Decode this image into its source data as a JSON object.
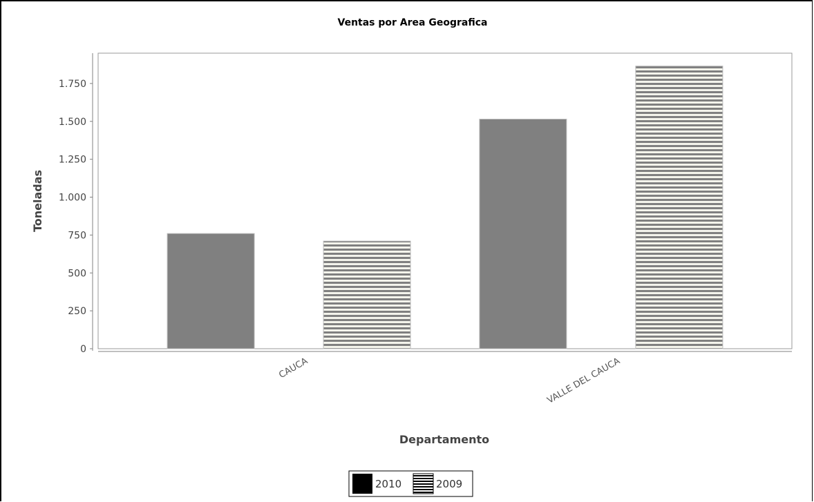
{
  "chart_data": {
    "type": "bar",
    "title": "Ventas por Area Geografica",
    "xlabel": "Departamento",
    "ylabel": "Toneladas",
    "categories": [
      "CAUCA",
      "VALLE DEL CAUCA"
    ],
    "series": [
      {
        "name": "2010",
        "values": [
          760,
          1515
        ],
        "fill": "solid",
        "color": "#808080"
      },
      {
        "name": "2009",
        "values": [
          710,
          1865
        ],
        "fill": "horizontal-stripes",
        "color": "#808080"
      }
    ],
    "ylim": [
      0,
      1950
    ],
    "yticks": [
      0,
      250,
      500,
      750,
      1000,
      1250,
      1500,
      1750
    ],
    "ytick_labels": [
      "0",
      "250",
      "500",
      "750",
      "1.000",
      "1.250",
      "1.500",
      "1.750"
    ],
    "grid": false,
    "legend_position": "bottom-center"
  },
  "legend": {
    "items": [
      {
        "label": "2010",
        "swatch": "solid",
        "color": "#000000"
      },
      {
        "label": "2009",
        "swatch": "horizontal-stripes",
        "color": "#000000"
      }
    ]
  },
  "colors": {
    "bar": "#808080",
    "stripe_bg": "#f4f4ec",
    "plot_border": "#999999"
  }
}
